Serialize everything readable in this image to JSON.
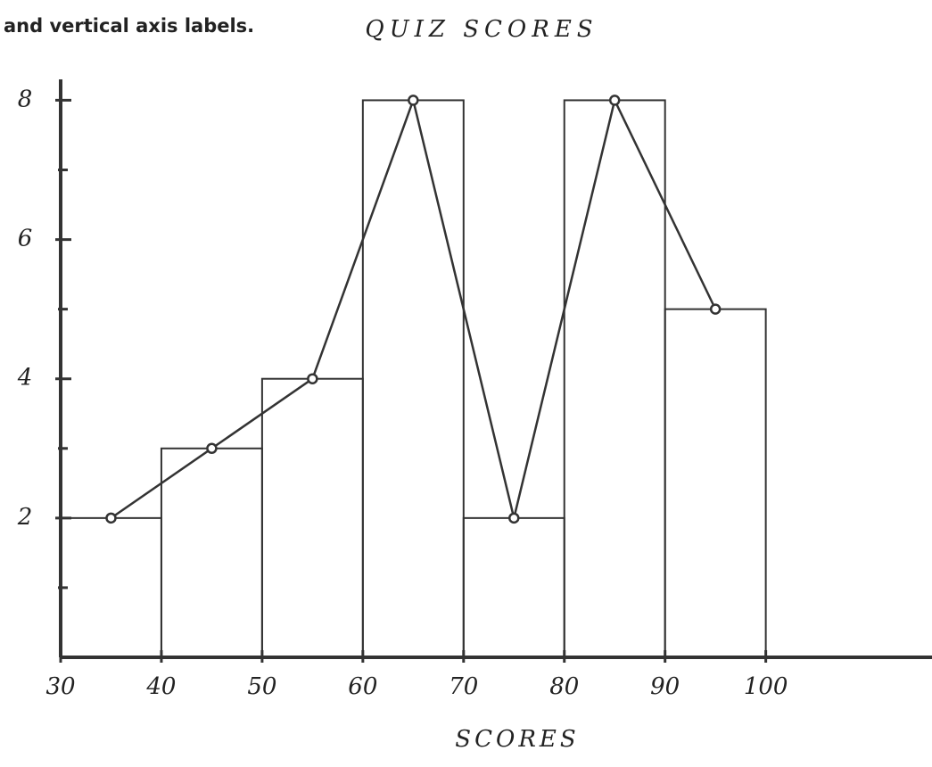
{
  "chart_data": {
    "type": "histogram",
    "instructions": "and vertical axis labels.",
    "title": "QUIZ SCORES",
    "x_label": "SCORES",
    "bins": [
      30,
      40,
      50,
      60,
      70,
      80,
      90,
      100
    ],
    "values": [
      2,
      3,
      4,
      8,
      2,
      8,
      5
    ],
    "frequency_polygon": true,
    "color": "#333333",
    "xlim": [
      30,
      116.5
    ],
    "xticks": [
      30,
      40,
      50,
      60,
      70,
      80,
      90,
      100
    ],
    "ylim": [
      0,
      8.3
    ],
    "yticks": [
      2,
      4,
      6,
      8
    ]
  }
}
